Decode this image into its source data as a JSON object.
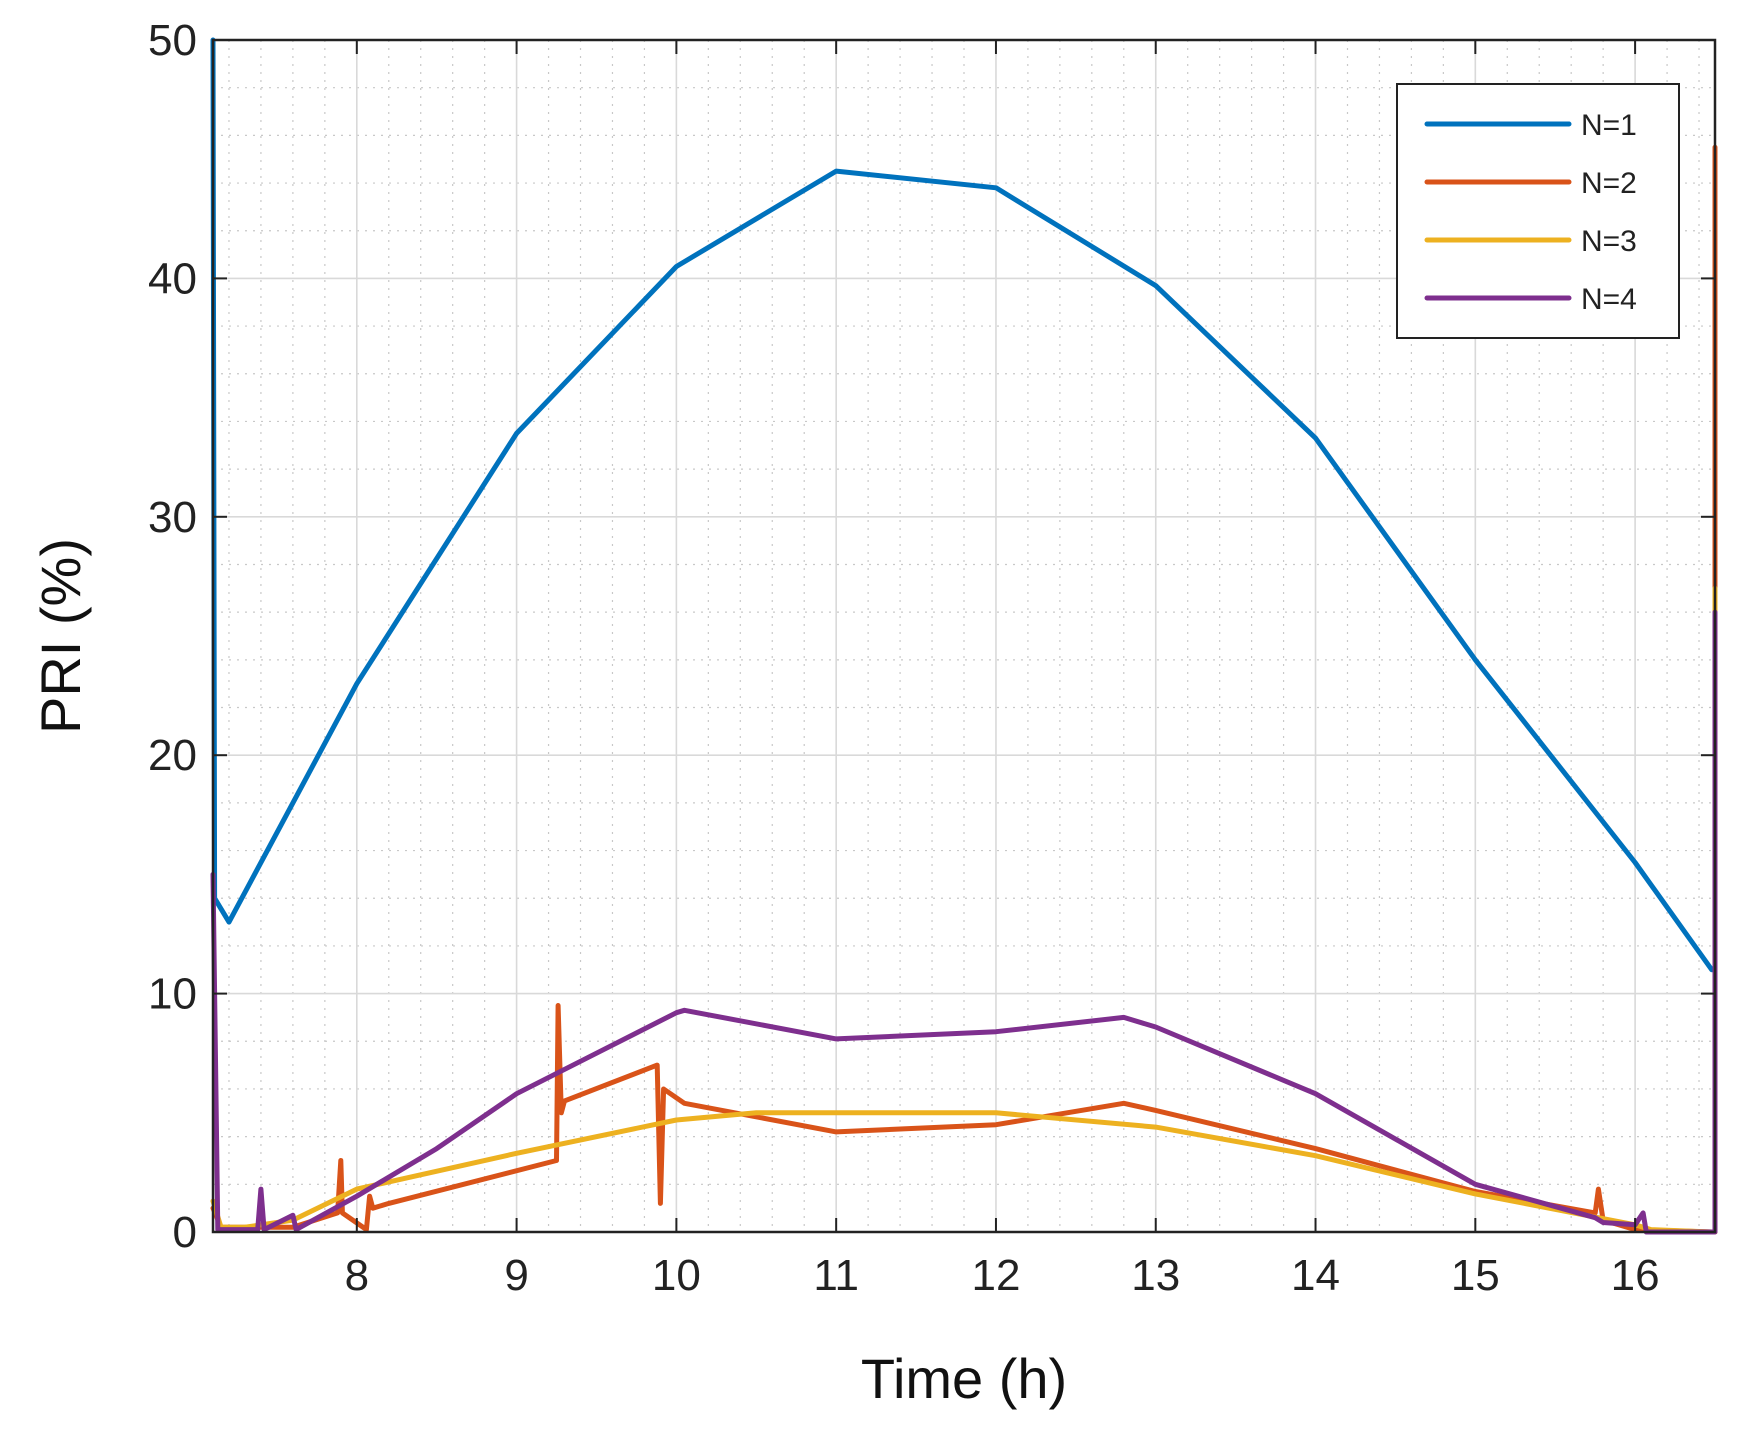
{
  "chart_data": {
    "type": "line",
    "title": "",
    "xlabel": "Time (h)",
    "ylabel": "PRI (%)",
    "xlim": [
      7.1,
      16.5
    ],
    "ylim": [
      0,
      50
    ],
    "xticks": [
      8,
      9,
      10,
      11,
      12,
      13,
      14,
      15,
      16
    ],
    "yticks": [
      0,
      10,
      20,
      30,
      40,
      50
    ],
    "xtick_labels": [
      "8",
      "9",
      "10",
      "11",
      "12",
      "13",
      "14",
      "15",
      "16"
    ],
    "ytick_labels": [
      "0",
      "10",
      "20",
      "30",
      "40",
      "50"
    ],
    "grid": true,
    "minor_grid": true,
    "legend_position": "top-right",
    "series": [
      {
        "name": "N=1",
        "color": "#0072BD",
        "x": [
          7.1,
          7.11,
          7.2,
          8.0,
          9.0,
          10.0,
          11.0,
          12.0,
          13.0,
          14.0,
          15.0,
          16.0,
          16.48,
          16.5,
          16.5
        ],
        "y": [
          50,
          14,
          13,
          23,
          33.5,
          40.5,
          44.5,
          43.8,
          39.7,
          33.3,
          24,
          15.5,
          11,
          11,
          16.5
        ]
      },
      {
        "name": "N=2",
        "color": "#D95319",
        "x": [
          7.1,
          7.15,
          7.6,
          7.88,
          7.9,
          7.91,
          8.06,
          8.08,
          8.1,
          8.2,
          9.25,
          9.26,
          9.28,
          9.3,
          9.88,
          9.9,
          9.92,
          10.05,
          11.0,
          12.0,
          12.8,
          13.0,
          14.0,
          15.0,
          15.75,
          15.77,
          15.8,
          16.0,
          16.48,
          16.5,
          16.5
        ],
        "y": [
          1,
          0.2,
          0.2,
          0.8,
          3,
          0.8,
          0.1,
          1.5,
          1,
          1.2,
          3,
          9.5,
          5,
          5.5,
          7,
          1.2,
          6,
          5.4,
          4.2,
          4.5,
          5.4,
          5.1,
          3.5,
          1.7,
          0.8,
          1.8,
          0.5,
          0.1,
          0,
          0,
          45.5
        ]
      },
      {
        "name": "N=3",
        "color": "#EDB120",
        "x": [
          7.1,
          7.15,
          7.3,
          7.6,
          8.0,
          9.0,
          10.0,
          10.5,
          11.0,
          12.0,
          13.0,
          14.0,
          15.0,
          16.0,
          16.1,
          16.48,
          16.5,
          16.5
        ],
        "y": [
          1.3,
          0.2,
          0.2,
          0.5,
          1.8,
          3.3,
          4.7,
          5.0,
          5.0,
          5.0,
          4.4,
          3.2,
          1.6,
          0.3,
          0.1,
          0,
          0,
          27
        ]
      },
      {
        "name": "N=4",
        "color": "#7E2F8E",
        "x": [
          7.1,
          7.13,
          7.38,
          7.4,
          7.42,
          7.6,
          7.62,
          8.0,
          8.5,
          9.0,
          9.5,
          10.0,
          10.05,
          11.0,
          12.0,
          12.8,
          13.0,
          14.0,
          15.0,
          15.75,
          15.8,
          16.0,
          16.05,
          16.07,
          16.48,
          16.5,
          16.5
        ],
        "y": [
          15,
          0.1,
          0.1,
          1.8,
          0.1,
          0.7,
          0.1,
          1.5,
          3.5,
          5.8,
          7.5,
          9.2,
          9.3,
          8.1,
          8.4,
          9.0,
          8.6,
          5.8,
          2.0,
          0.6,
          0.4,
          0.3,
          0.8,
          0,
          0,
          0,
          26
        ]
      }
    ]
  }
}
